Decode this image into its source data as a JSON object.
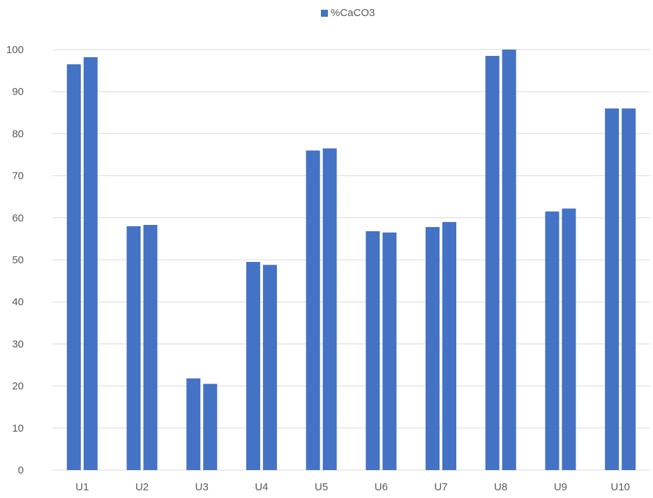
{
  "chart_data": {
    "type": "bar",
    "categories": [
      "U1",
      "U2",
      "U3",
      "U4",
      "U5",
      "U6",
      "U7",
      "U8",
      "U9",
      "U10"
    ],
    "series": [
      {
        "name": "%CaCO3",
        "values": [
          96.5,
          58.0,
          21.8,
          49.5,
          76.0,
          56.8,
          57.8,
          98.5,
          61.5,
          86.0
        ]
      },
      {
        "name": "",
        "values": [
          98.2,
          58.3,
          20.5,
          48.8,
          76.5,
          56.5,
          59.0,
          100.0,
          62.2,
          86.0
        ]
      }
    ],
    "legend": {
      "label": "%CaCO3",
      "position": "top-center"
    },
    "title": "",
    "xlabel": "",
    "ylabel": "",
    "ylim": [
      0,
      100
    ],
    "yticks": [
      0,
      10,
      20,
      30,
      40,
      50,
      60,
      70,
      80,
      90,
      100
    ],
    "grid": true,
    "colors": {
      "bar": "#4472C4",
      "grid": "#D9D9D9",
      "text": "#595959"
    }
  }
}
